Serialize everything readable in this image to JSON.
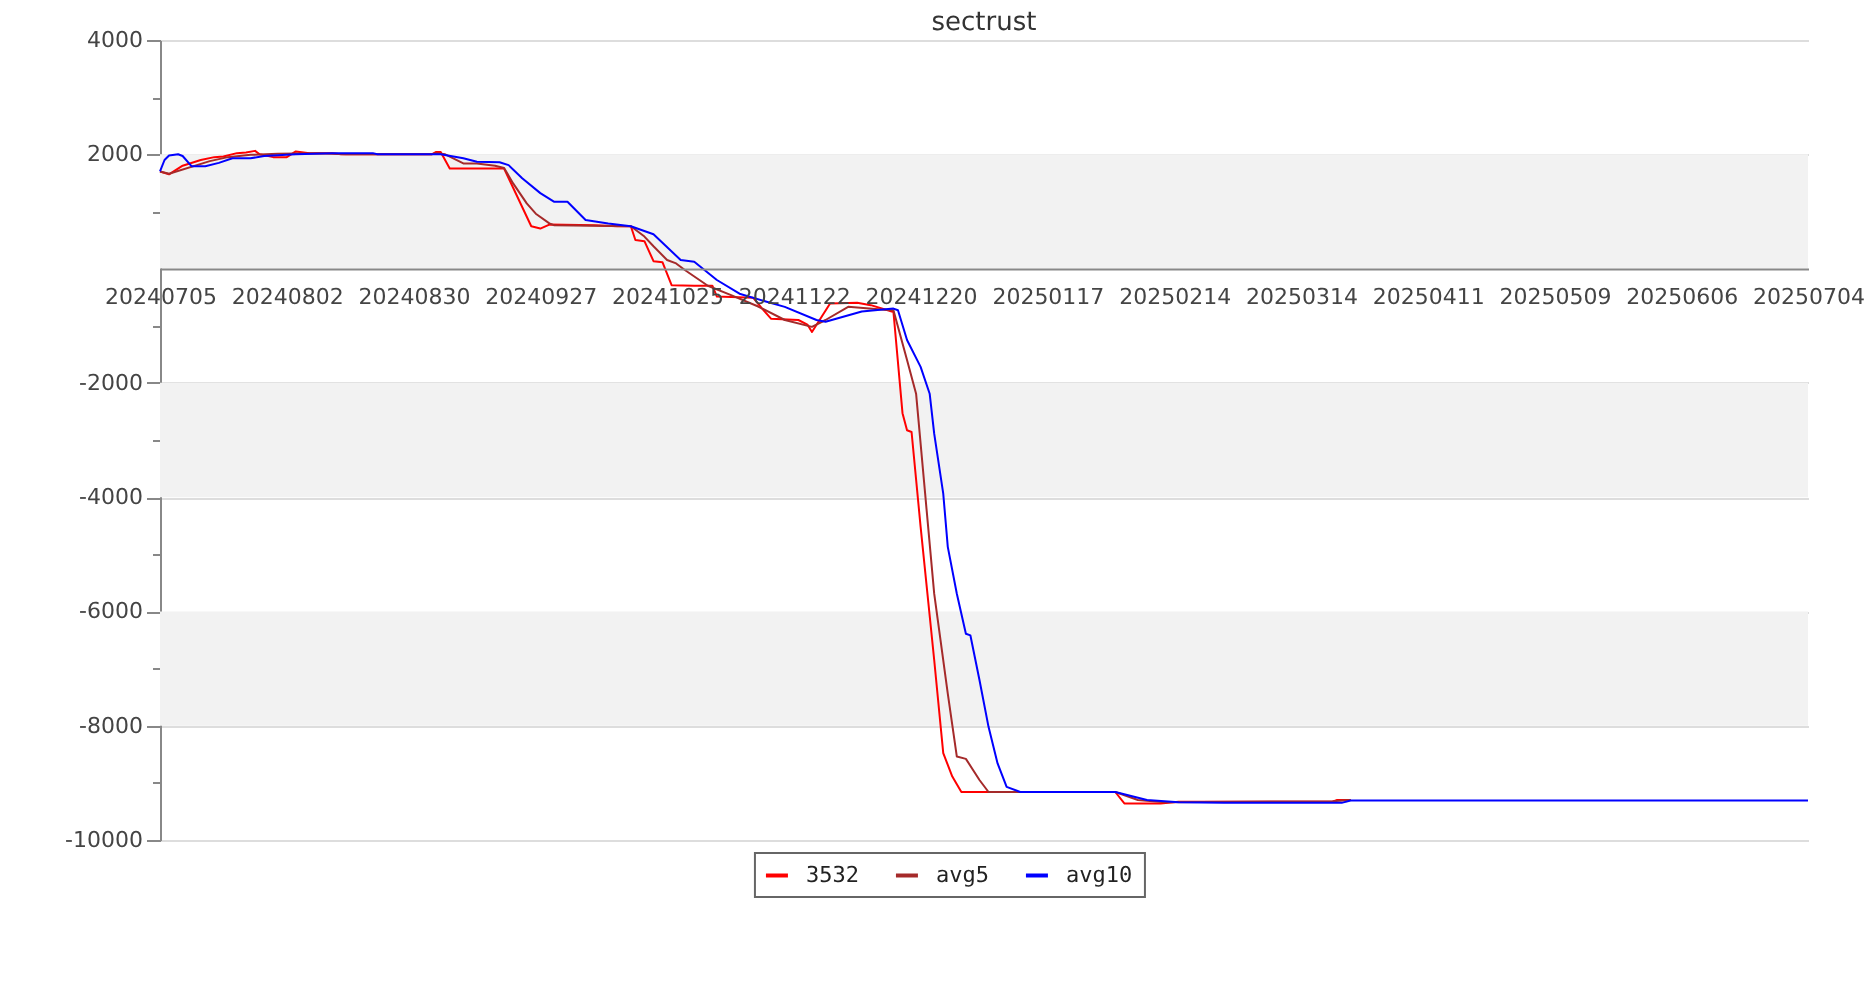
{
  "chart_data": {
    "type": "line",
    "title": "sectrust",
    "xlim": [
      "2024-07-05",
      "2025-07-04"
    ],
    "xticks": [
      {
        "value": "2024-07-05",
        "label": "20240705"
      },
      {
        "value": "2024-08-02",
        "label": "20240802"
      },
      {
        "value": "2024-08-30",
        "label": "20240830"
      },
      {
        "value": "2024-09-27",
        "label": "20240927"
      },
      {
        "value": "2024-10-25",
        "label": "20241025"
      },
      {
        "value": "2024-11-22",
        "label": "20241122"
      },
      {
        "value": "2024-12-20",
        "label": "20241220"
      },
      {
        "value": "2025-01-17",
        "label": "20250117"
      },
      {
        "value": "2025-02-14",
        "label": "20250214"
      },
      {
        "value": "2025-03-14",
        "label": "20250314"
      },
      {
        "value": "2025-04-11",
        "label": "20250411"
      },
      {
        "value": "2025-05-09",
        "label": "20250509"
      },
      {
        "value": "2025-06-06",
        "label": "20250606"
      },
      {
        "value": "2025-07-04",
        "label": "20250704"
      }
    ],
    "ylim": [
      -10000,
      4000
    ],
    "yticks": [
      4000,
      {
        "value": 3000,
        "label": null
      },
      2000,
      {
        "value": 1000,
        "label": null
      },
      {
        "value": -1000,
        "label": null
      },
      -2000,
      {
        "value": -3000,
        "label": null
      },
      -4000,
      {
        "value": -5000,
        "label": null
      },
      -6000,
      {
        "value": -7000,
        "label": null
      },
      -8000,
      {
        "value": -9000,
        "label": null
      },
      -10000
    ],
    "grid": "y",
    "legend": "bottom",
    "bands": [
      {
        "axis": "y",
        "from": 0,
        "to": 2000,
        "color": "#f2f2f2"
      },
      {
        "axis": "y",
        "from": -4000,
        "to": -2000,
        "color": "#f2f2f2"
      },
      {
        "axis": "y",
        "from": -8000,
        "to": -6000,
        "color": "#f2f2f2"
      }
    ],
    "series": [
      {
        "name": "3532",
        "color": "#ff0000",
        "x": [
          "2024-07-05",
          "2024-07-07",
          "2024-07-10",
          "2024-07-14",
          "2024-07-17",
          "2024-07-19",
          "2024-07-22",
          "2024-07-24",
          "2024-07-26",
          "2024-07-27",
          "2024-07-30",
          "2024-08-02",
          "2024-08-04",
          "2024-08-07",
          "2024-08-12",
          "2024-08-14",
          "2024-09-03",
          "2024-09-04",
          "2024-09-05",
          "2024-09-07",
          "2024-09-19",
          "2024-09-25",
          "2024-09-27",
          "2024-09-29",
          "2024-10-09",
          "2024-10-14",
          "2024-10-17",
          "2024-10-18",
          "2024-10-20",
          "2024-10-22",
          "2024-10-24",
          "2024-10-26",
          "2024-10-31",
          "2024-11-04",
          "2024-11-05",
          "2024-11-13",
          "2024-11-15",
          "2024-11-17",
          "2024-11-23",
          "2024-11-25",
          "2024-11-26",
          "2024-11-30",
          "2024-12-06",
          "2024-12-09",
          "2024-12-14",
          "2024-12-16",
          "2024-12-17",
          "2024-12-18",
          "2024-12-20",
          "2024-12-23",
          "2024-12-25",
          "2024-12-27",
          "2024-12-29",
          "2025-02-01",
          "2025-02-03",
          "2025-02-11",
          "2025-02-15",
          "2025-03-21",
          "2025-03-22",
          "2025-03-25"
        ],
        "values": [
          1700,
          1650,
          1800,
          1900,
          1950,
          1960,
          2020,
          2030,
          2060,
          2000,
          1950,
          1950,
          2050,
          2020,
          2020,
          2000,
          2000,
          2040,
          2040,
          1750,
          1750,
          740,
          700,
          770,
          760,
          740,
          740,
          500,
          480,
          130,
          110,
          -290,
          -300,
          -300,
          -490,
          -510,
          -700,
          -880,
          -900,
          -980,
          -1110,
          -610,
          -600,
          -640,
          -760,
          -2530,
          -2830,
          -2860,
          -4520,
          -6850,
          -8480,
          -8890,
          -9160,
          -9160,
          -9360,
          -9360,
          -9330,
          -9330,
          -9300,
          -9300
        ]
      },
      {
        "name": "avg5",
        "color": "#a52a2a",
        "x": [
          "2024-07-05",
          "2024-07-07",
          "2024-07-16",
          "2024-07-20",
          "2024-07-25",
          "2024-07-31",
          "2024-08-09",
          "2024-08-15",
          "2024-09-03",
          "2024-09-04",
          "2024-09-06",
          "2024-09-10",
          "2024-09-13",
          "2024-09-17",
          "2024-09-19",
          "2024-09-21",
          "2024-09-24",
          "2024-09-26",
          "2024-09-29",
          "2024-09-30",
          "2024-10-17",
          "2024-10-20",
          "2024-10-22",
          "2024-10-25",
          "2024-10-27",
          "2024-10-29",
          "2024-11-03",
          "2024-11-08",
          "2024-11-14",
          "2024-11-20",
          "2024-11-26",
          "2024-11-29",
          "2024-12-04",
          "2024-12-12",
          "2024-12-14",
          "2024-12-17",
          "2024-12-19",
          "2024-12-21",
          "2024-12-23",
          "2024-12-26",
          "2024-12-28",
          "2024-12-30",
          "2025-01-02",
          "2025-01-04",
          "2025-02-01",
          "2025-02-06",
          "2025-02-12",
          "2025-03-21",
          "2025-03-25"
        ],
        "values": [
          1700,
          1660,
          1880,
          1950,
          1990,
          2010,
          2020,
          2000,
          2000,
          2020,
          2000,
          1840,
          1840,
          1800,
          1760,
          1490,
          1140,
          960,
          790,
          760,
          740,
          560,
          390,
          150,
          90,
          -30,
          -300,
          -460,
          -660,
          -900,
          -1020,
          -900,
          -670,
          -720,
          -730,
          -1600,
          -2190,
          -3940,
          -5690,
          -7440,
          -8540,
          -8580,
          -8950,
          -9160,
          -9160,
          -9300,
          -9340,
          -9320,
          -9300
        ]
      },
      {
        "name": "avg10",
        "color": "#0000ff",
        "x": [
          "2024-07-05",
          "2024-07-06",
          "2024-07-07",
          "2024-07-09",
          "2024-07-10",
          "2024-07-12",
          "2024-07-15",
          "2024-07-18",
          "2024-07-21",
          "2024-07-25",
          "2024-07-28",
          "2024-08-04",
          "2024-08-12",
          "2024-08-21",
          "2024-08-22",
          "2024-09-05",
          "2024-09-10",
          "2024-09-13",
          "2024-09-18",
          "2024-09-20",
          "2024-09-23",
          "2024-09-27",
          "2024-09-30",
          "2024-10-03",
          "2024-10-07",
          "2024-10-12",
          "2024-10-17",
          "2024-10-22",
          "2024-10-28",
          "2024-10-31",
          "2024-11-05",
          "2024-11-10",
          "2024-11-16",
          "2024-11-20",
          "2024-11-27",
          "2024-11-29",
          "2024-12-07",
          "2024-12-14",
          "2024-12-15",
          "2024-12-17",
          "2024-12-20",
          "2024-12-22",
          "2024-12-23",
          "2024-12-25",
          "2024-12-26",
          "2024-12-28",
          "2024-12-30",
          "2024-12-31",
          "2025-01-02",
          "2025-01-04",
          "2025-01-06",
          "2025-01-08",
          "2025-01-11",
          "2025-02-01",
          "2025-02-08",
          "2025-02-15",
          "2025-02-25",
          "2025-03-23",
          "2025-03-25",
          "2025-07-04"
        ],
        "values": [
          1700,
          1900,
          1980,
          2000,
          1970,
          1790,
          1790,
          1850,
          1930,
          1930,
          1970,
          2000,
          2020,
          2020,
          2000,
          2000,
          1930,
          1870,
          1860,
          1810,
          1580,
          1320,
          1170,
          1170,
          850,
          790,
          740,
          600,
          150,
          120,
          -200,
          -440,
          -580,
          -670,
          -900,
          -930,
          -750,
          -700,
          -730,
          -1250,
          -1720,
          -2190,
          -2890,
          -3940,
          -4870,
          -5690,
          -6390,
          -6420,
          -7200,
          -8020,
          -8660,
          -9070,
          -9160,
          -9160,
          -9300,
          -9340,
          -9350,
          -9350,
          -9310,
          -9310
        ]
      }
    ]
  }
}
